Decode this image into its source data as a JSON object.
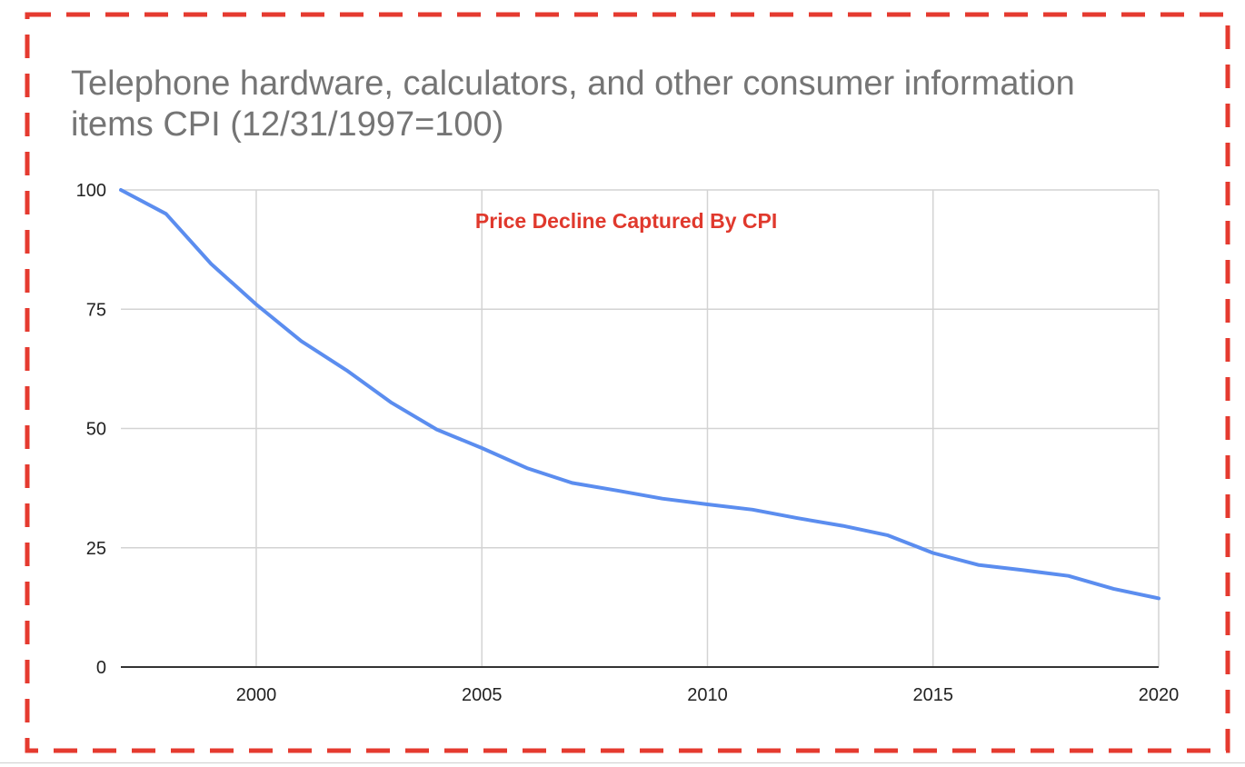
{
  "chart_data": {
    "type": "line",
    "title": "Telephone hardware, calculators, and other consumer information items CPI (12/31/1997=100)",
    "xlabel": "",
    "ylabel": "",
    "x": [
      1997,
      1998,
      1999,
      2000,
      2001,
      2002,
      2003,
      2004,
      2005,
      2006,
      2007,
      2008,
      2009,
      2010,
      2011,
      2012,
      2013,
      2014,
      2015,
      2016,
      2017,
      2018,
      2019,
      2020
    ],
    "series": [
      {
        "values": [
          100,
          95,
          84.5,
          76,
          68.3,
          62.2,
          55.4,
          49.8,
          45.9,
          41.7,
          38.6,
          37.0,
          35.3,
          34.1,
          33.0,
          31.2,
          29.6,
          27.6,
          23.9,
          21.4,
          20.3,
          19.1,
          16.4,
          14.4
        ],
        "color": "#5b8def"
      }
    ],
    "xlim": [
      1997,
      2020
    ],
    "ylim": [
      0,
      100
    ],
    "xticks": [
      2000,
      2005,
      2010,
      2015,
      2020
    ],
    "yticks": [
      0,
      25,
      50,
      75,
      100
    ],
    "grid": true,
    "legend": "none",
    "annotations": [
      {
        "text": "Price Decline Captured By CPI",
        "x": 2008.2,
        "y": 92,
        "color": "#e0392d"
      }
    ]
  },
  "colors": {
    "frame_border": "#e53a2f",
    "grid": "#d3d3d3",
    "axis": "#333333",
    "title": "#757575"
  }
}
